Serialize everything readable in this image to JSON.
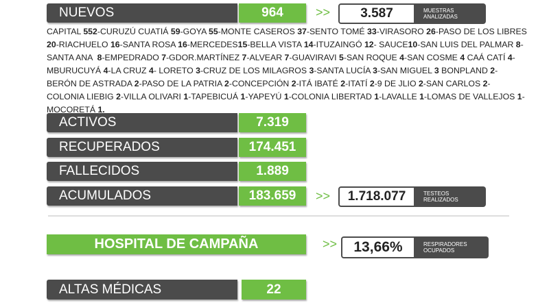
{
  "nuevos": {
    "label": "NUEVOS",
    "value": "964",
    "arrow": ">>",
    "side_value": "3.587",
    "side_label": "MUESTRAS ANALIZADAS"
  },
  "distribution": [
    {
      "place": "CAPITAL ",
      "count": "552"
    },
    {
      "place": "-CURUZÚ CUATIÁ ",
      "count": "59"
    },
    {
      "place": "-GOYA ",
      "count": "55"
    },
    {
      "place": "-MONTE CASEROS ",
      "count": "37"
    },
    {
      "place": "-SENTO TOMÉ ",
      "count": "33"
    },
    {
      "place": "-VIRASORO ",
      "count": "26"
    },
    {
      "place": "-PASO DE LOS LIBRES ",
      "count": "20"
    },
    {
      "place": "-RIACHUELO ",
      "count": "16"
    },
    {
      "place": "-SANTA ROSA ",
      "count": "16"
    },
    {
      "place": "-MERCEDES",
      "count": "15"
    },
    {
      "place": "-BELLA VISTA ",
      "count": "14"
    },
    {
      "place": "-ITUZAINGÓ ",
      "count": "12"
    },
    {
      "place": "- SAUCE",
      "count": "10"
    },
    {
      "place": "-SAN LUIS DEL PALMAR ",
      "count": "8"
    },
    {
      "place": "-SANTA ANA  ",
      "count": "8"
    },
    {
      "place": "-EMPEDRADO ",
      "count": "7"
    },
    {
      "place": "-GDOR.MARTÍNEZ ",
      "count": "7"
    },
    {
      "place": "-ALVEAR ",
      "count": "7"
    },
    {
      "place": "-GUAVIRAVI ",
      "count": "5"
    },
    {
      "place": "-SAN ROQUE ",
      "count": "4"
    },
    {
      "place": "-SAN COSME ",
      "count": "4"
    },
    {
      "place": " CAÁ CATÍ ",
      "count": "4"
    },
    {
      "place": "- MBURUCUYÁ ",
      "count": "4"
    },
    {
      "place": "-LA CRUZ ",
      "count": "4"
    },
    {
      "place": "- LORETO ",
      "count": "3"
    },
    {
      "place": "-CRUZ DE LOS MILAGROS ",
      "count": "3"
    },
    {
      "place": "-SANTA LUCÍA ",
      "count": "3"
    },
    {
      "place": "-SAN MIGUEL ",
      "count": "3"
    },
    {
      "place": " BONPLAND ",
      "count": "2"
    },
    {
      "place": "-BERÓN DE ASTRADA ",
      "count": "2"
    },
    {
      "place": "-PASO DE LA PATRIA ",
      "count": "2"
    },
    {
      "place": "-CONCEPCIÓN ",
      "count": "2"
    },
    {
      "place": "-ITÁ IBATÉ ",
      "count": "2"
    },
    {
      "place": "-ITATÍ ",
      "count": "2"
    },
    {
      "place": "-9 DE JLIO ",
      "count": "2"
    },
    {
      "place": "-SAN CARLOS ",
      "count": "2"
    },
    {
      "place": "-COLONIA LIEBIG ",
      "count": "2"
    },
    {
      "place": "-VILLA OLIVARI ",
      "count": "1"
    },
    {
      "place": "-TAPEBICUÁ ",
      "count": "1"
    },
    {
      "place": "-YAPEYÚ ",
      "count": "1"
    },
    {
      "place": "-COLONIA LIBERTAD ",
      "count": "1"
    },
    {
      "place": "-LAVALLE ",
      "count": "1"
    },
    {
      "place": "-LOMAS DE VALLEJOS ",
      "count": "1"
    },
    {
      "place": "-MOCORETÁ ",
      "count": "1."
    }
  ],
  "stats": [
    {
      "label": "ACTIVOS",
      "value": "7.319"
    },
    {
      "label": "RECUPERADOS",
      "value": "174.451"
    },
    {
      "label": "FALLECIDOS",
      "value": "1.889"
    },
    {
      "label": "ACUMULADOS",
      "value": "183.659"
    }
  ],
  "testeos": {
    "arrow": ">>",
    "value": "1.718.077",
    "label": "TESTEOS REALIZADOS"
  },
  "hospital": {
    "label": "HOSPITAL DE CAMPAÑA",
    "arrow": ">>",
    "value": "13,66%",
    "side_label": "RESPIRADORES OCUPADOS"
  },
  "altas": {
    "label": "ALTAS MÉDICAS",
    "value": "22"
  }
}
